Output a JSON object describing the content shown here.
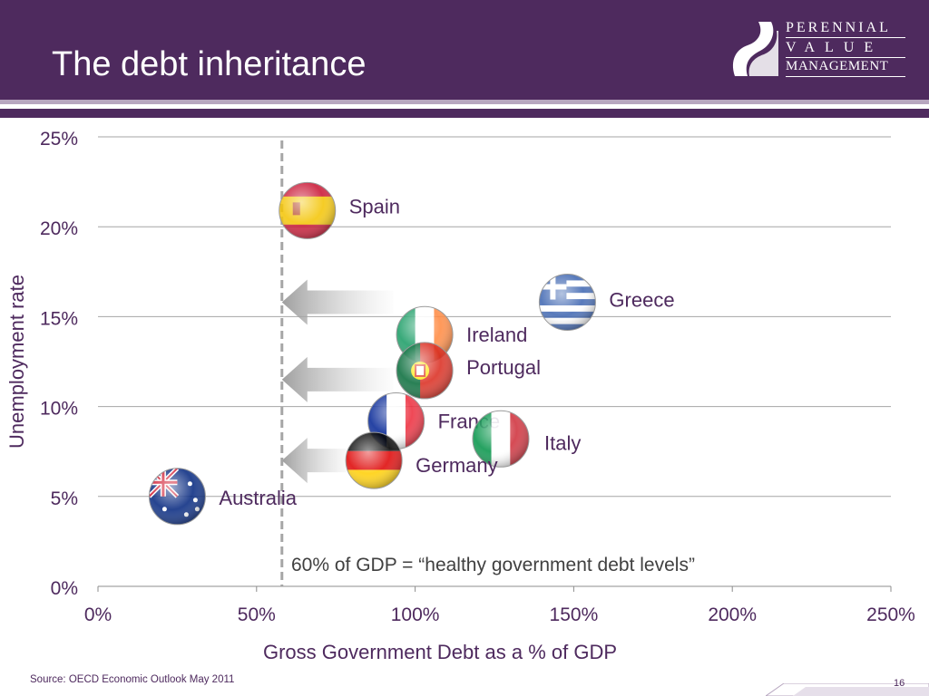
{
  "slide": {
    "title": "The debt inheritance",
    "source": "Source: OECD Economic Outlook May 2011",
    "page_number": "16"
  },
  "logo": {
    "line1": "PERENNIAL",
    "line2": "VALUE",
    "line3": "MANAGEMENT"
  },
  "colors": {
    "brand_purple": "#4e2a5e",
    "stripe_light": "#b7a6bf",
    "gridline": "#a6a6a6",
    "threshold_line": "#a6a6a6"
  },
  "chart_data": {
    "type": "scatter",
    "xlabel": "Gross Government Debt as a % of GDP",
    "ylabel": "Unemployment rate",
    "xlim": [
      0,
      250
    ],
    "ylim": [
      0,
      25
    ],
    "x_ticks": [
      "0%",
      "50%",
      "100%",
      "150%",
      "200%",
      "250%"
    ],
    "y_ticks": [
      "0%",
      "5%",
      "10%",
      "15%",
      "20%",
      "25%"
    ],
    "grid": "horizontal",
    "points": [
      {
        "label": "Spain",
        "x": 66,
        "y": 20.9,
        "flag": "spain-flag"
      },
      {
        "label": "Greece",
        "x": 148,
        "y": 15.8,
        "flag": "greece-flag"
      },
      {
        "label": "Ireland",
        "x": 103,
        "y": 14.0,
        "flag": "ireland-flag"
      },
      {
        "label": "Portugal",
        "x": 103,
        "y": 12.0,
        "flag": "portugal-flag"
      },
      {
        "label": "France",
        "x": 94,
        "y": 9.2,
        "flag": "france-flag"
      },
      {
        "label": "Italy",
        "x": 127,
        "y": 8.2,
        "flag": "italy-flag"
      },
      {
        "label": "Germany",
        "x": 87,
        "y": 7.0,
        "flag": "germany-flag"
      },
      {
        "label": "Australia",
        "x": 25,
        "y": 5.0,
        "flag": "australia-flag"
      }
    ],
    "threshold": {
      "x": 58,
      "label": "60% of GDP = “healthy government debt levels”"
    },
    "arrows": [
      {
        "y": 15.8,
        "from_x": 93,
        "to_x": 58
      },
      {
        "y": 11.5,
        "from_x": 93,
        "to_x": 58
      },
      {
        "y": 7.0,
        "from_x": 80,
        "to_x": 58
      }
    ]
  }
}
